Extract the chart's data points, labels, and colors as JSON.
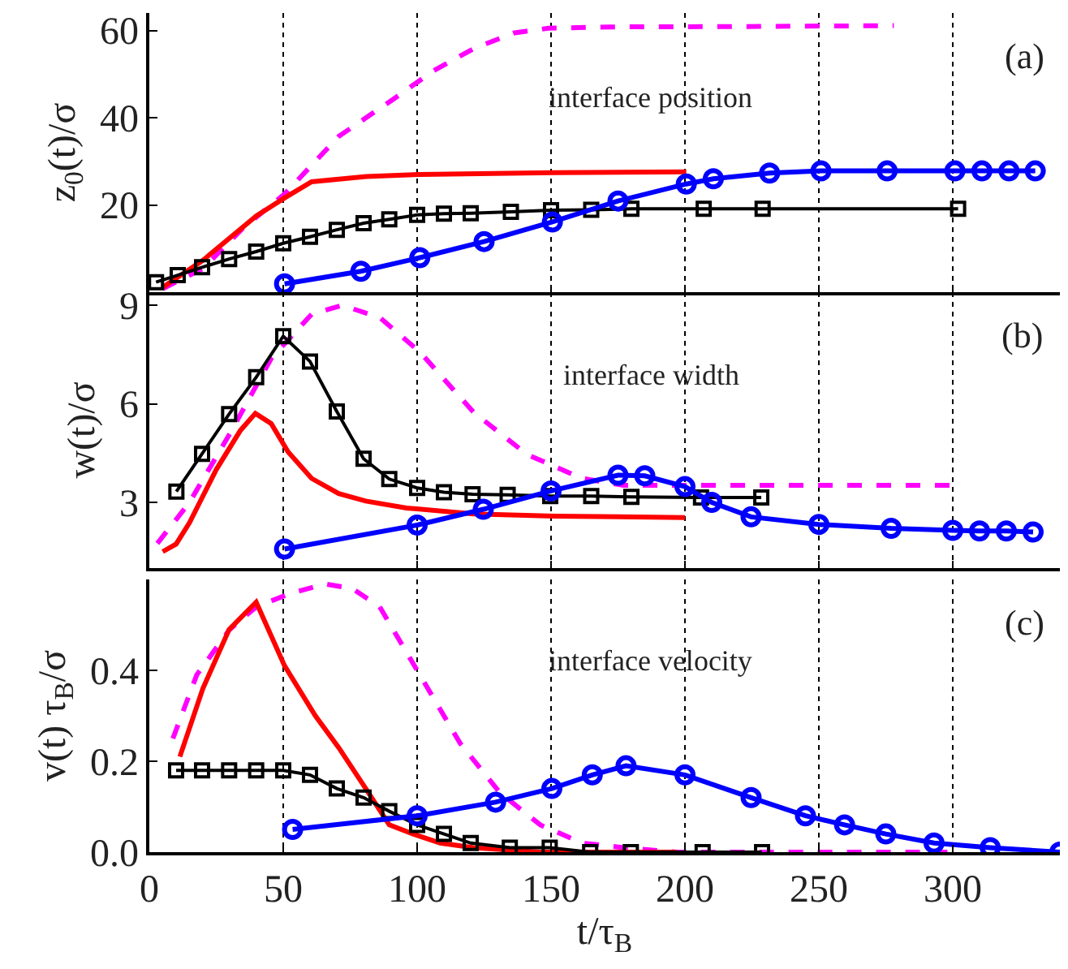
{
  "chart_data": [
    {
      "type": "line",
      "ylabel": "z$_{0}$(t)/σ",
      "annotations": [
        "(a)",
        "interface position"
      ],
      "xlim": [
        0,
        340
      ],
      "xticks": [
        0,
        50,
        100,
        150,
        200,
        250,
        300
      ],
      "ylim": [
        0,
        64
      ],
      "yticks": [
        20,
        40,
        60
      ],
      "grid": "x",
      "tick_labels": "y",
      "series": [
        {
          "color": "#ff00ff",
          "line_style": "dashed",
          "marker": "none",
          "x": [
            5,
            20,
            35,
            50.5,
            70.7,
            91,
            106,
            121,
            136,
            149,
            172,
            222,
            278
          ],
          "values": [
            0.8,
            5.4,
            14.7,
            22.5,
            35.7,
            44.2,
            50.7,
            55.8,
            59.4,
            60.5,
            60.8,
            60.9,
            61.1
          ]
        },
        {
          "color": "#ff0000",
          "line_style": "solid",
          "marker": "none",
          "x": [
            5,
            20,
            40,
            50.5,
            60.6,
            81,
            101,
            151,
            200.5
          ],
          "values": [
            1.1,
            7.3,
            17.5,
            21.6,
            25.3,
            26.5,
            27,
            27.4,
            27.6
          ]
        },
        {
          "color": "#000000",
          "line_style": "solid",
          "marker": "square",
          "x": [
            2.5,
            10.6,
            19.7,
            29.8,
            39.9,
            50,
            60,
            70,
            80,
            89.6,
            100,
            110,
            120,
            135,
            150,
            165,
            180,
            207,
            229,
            302
          ],
          "values": [
            2.3,
            3.9,
            5.7,
            7.6,
            9.3,
            11.2,
            12.7,
            14.3,
            15.8,
            16.7,
            17.7,
            18,
            18.1,
            18.4,
            18.8,
            18.9,
            19.1,
            19.1,
            19.1,
            19.1
          ]
        },
        {
          "color": "#0000ff",
          "line_style": "solid",
          "marker": "circle",
          "x": [
            50.5,
            79,
            101,
            125,
            150.5,
            175,
            200.5,
            210.6,
            231.6,
            250.8,
            275.5,
            300.8,
            310.9,
            321,
            330.8
          ],
          "values": [
            1.9,
            4.8,
            7.9,
            11.6,
            16.1,
            20.9,
            24.8,
            26,
            27.3,
            27.8,
            27.8,
            27.8,
            27.8,
            27.8,
            27.8
          ]
        }
      ]
    },
    {
      "type": "line",
      "ylabel": "w(t)/σ",
      "annotations": [
        "(b)",
        "interface width"
      ],
      "xlim": [
        0,
        340
      ],
      "xticks": [
        0,
        50,
        100,
        150,
        200,
        250,
        300
      ],
      "ylim": [
        1,
        9.4
      ],
      "yticks": [
        3,
        6,
        9
      ],
      "grid": "x",
      "tick_labels": "y",
      "series": [
        {
          "color": "#ff00ff",
          "line_style": "dashed",
          "marker": "none",
          "x": [
            3,
            15,
            30,
            45.5,
            60.6,
            72,
            86,
            101,
            121,
            141,
            161.6,
            177,
            197,
            300
          ],
          "values": [
            1.75,
            3,
            5.08,
            7.38,
            8.73,
            9,
            8.63,
            7.58,
            5.75,
            4.46,
            3.73,
            3.52,
            3.52,
            3.52
          ]
        },
        {
          "color": "#ff0000",
          "line_style": "solid",
          "marker": "none",
          "x": [
            5,
            10,
            15,
            25,
            34,
            39.6,
            45.5,
            51.8,
            60.6,
            70.7,
            80.8,
            96,
            121,
            151.5,
            200
          ],
          "values": [
            1.5,
            1.73,
            2.38,
            4,
            5.19,
            5.71,
            5.4,
            4.54,
            3.73,
            3.27,
            3.04,
            2.83,
            2.65,
            2.58,
            2.54
          ]
        },
        {
          "color": "#000000",
          "line_style": "solid",
          "marker": "square",
          "x": [
            10.1,
            19.7,
            29.8,
            39.9,
            50,
            60,
            70,
            80,
            89.6,
            100,
            110,
            120.7,
            133.8,
            149.7,
            165,
            180,
            206,
            228.5
          ],
          "values": [
            3.33,
            4.48,
            5.69,
            6.81,
            8.06,
            7.29,
            5.77,
            4.33,
            3.71,
            3.44,
            3.31,
            3.25,
            3.23,
            3.19,
            3.19,
            3.17,
            3.15,
            3.15
          ]
        },
        {
          "color": "#0000ff",
          "line_style": "solid",
          "marker": "circle",
          "x": [
            50.5,
            100,
            124.7,
            150,
            175,
            185,
            200,
            210,
            224.7,
            250,
            277,
            300,
            310,
            320,
            330
          ],
          "values": [
            1.58,
            2.31,
            2.79,
            3.35,
            3.83,
            3.81,
            3.48,
            3,
            2.56,
            2.33,
            2.21,
            2.15,
            2.13,
            2.13,
            2.1
          ]
        }
      ]
    },
    {
      "type": "line",
      "xlabel": "t/τ$_{B}$",
      "ylabel": "v(t) τ$_{B}$/σ",
      "annotations": [
        "(c)",
        "interface velocity"
      ],
      "xlim": [
        0,
        340
      ],
      "xticks": [
        0,
        50,
        100,
        150,
        200,
        250,
        300
      ],
      "ylim": [
        0,
        0.6
      ],
      "yticks": [
        {
          "value": 0,
          "label": "0.0"
        },
        {
          "value": 0.2,
          "label": "0.2"
        },
        {
          "value": 0.4,
          "label": "0.4"
        }
      ],
      "grid": "x",
      "series": [
        {
          "color": "#ff00ff",
          "line_style": "dashed",
          "marker": "none",
          "x": [
            8.8,
            17.7,
            30,
            40,
            53,
            65.7,
            75.8,
            86,
            101,
            116,
            131,
            146,
            161.6,
            177,
            197,
            298
          ],
          "values": [
            0.25,
            0.39,
            0.49,
            0.54,
            0.57,
            0.59,
            0.58,
            0.54,
            0.39,
            0.24,
            0.13,
            0.06,
            0.02,
            0.01,
            0,
            0
          ]
        },
        {
          "color": "#ff0000",
          "line_style": "solid",
          "marker": "none",
          "x": [
            11.4,
            20,
            29.8,
            39.9,
            50.5,
            62,
            70.7,
            80.8,
            89.6,
            98.5,
            108.6,
            121,
            146,
            172,
            197
          ],
          "values": [
            0.21,
            0.36,
            0.49,
            0.55,
            0.41,
            0.3,
            0.23,
            0.14,
            0.06,
            0.04,
            0.02,
            0.01,
            0,
            0,
            0
          ]
        },
        {
          "color": "#000000",
          "line_style": "solid",
          "marker": "square",
          "x": [
            10,
            19.7,
            29.8,
            39.9,
            50,
            60,
            70,
            80,
            89.6,
            100,
            110,
            120,
            134.6,
            149.5,
            164.6,
            179.8,
            206.6,
            228.8
          ],
          "values": [
            0.18,
            0.18,
            0.18,
            0.18,
            0.18,
            0.17,
            0.14,
            0.12,
            0.09,
            0.06,
            0.04,
            0.02,
            0.01,
            0.01,
            0,
            0,
            0,
            0
          ]
        },
        {
          "color": "#0000ff",
          "line_style": "solid",
          "marker": "circle",
          "x": [
            53.5,
            100,
            129.3,
            150.3,
            165.4,
            178,
            200,
            224.7,
            245,
            259.6,
            275,
            293,
            314,
            340
          ],
          "values": [
            0.05,
            0.08,
            0.11,
            0.14,
            0.17,
            0.19,
            0.17,
            0.12,
            0.08,
            0.06,
            0.04,
            0.02,
            0.01,
            0
          ]
        }
      ]
    }
  ]
}
